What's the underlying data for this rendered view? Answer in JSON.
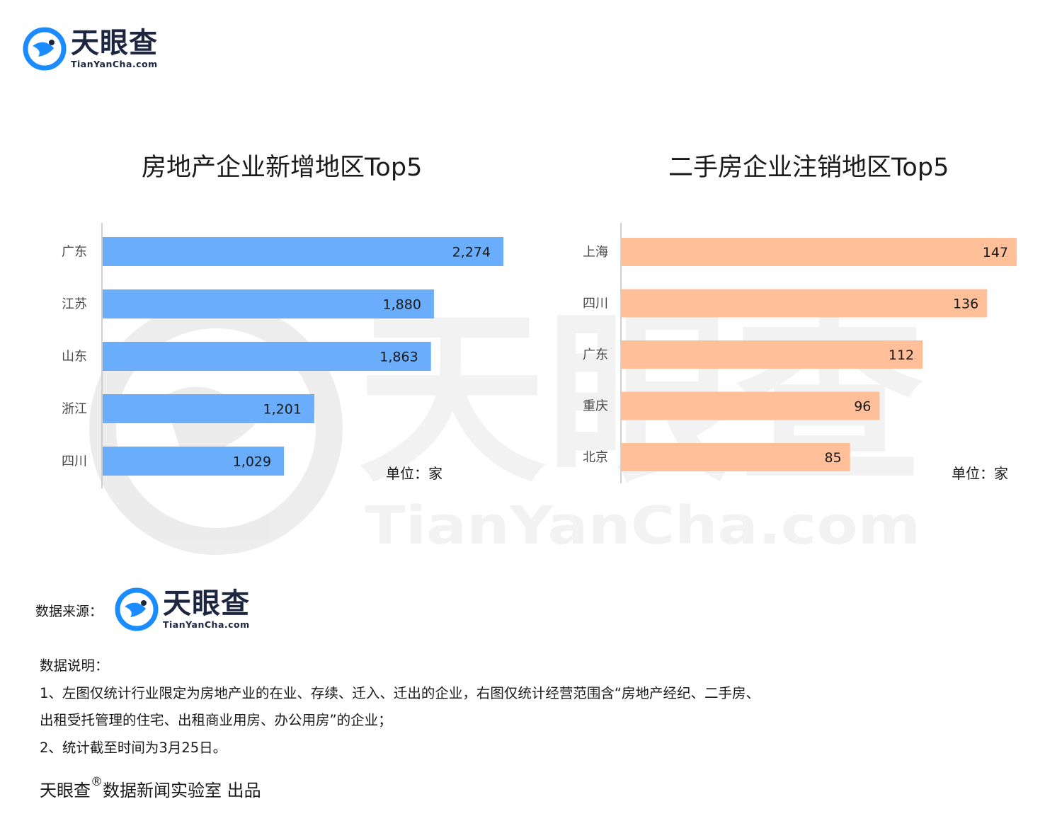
{
  "brand": {
    "name_cn": "天眼查",
    "name_en": "TianYanCha.com",
    "colors": {
      "navy": "#1d2640",
      "logo_blue": "#1a8cff"
    }
  },
  "watermark": {
    "text_cn": "天眼查",
    "text_en": "TianYanCha.com"
  },
  "chart_data": [
    {
      "type": "bar",
      "orientation": "horizontal",
      "title": "房地产企业新增地区Top5",
      "categories": [
        "广东",
        "江苏",
        "山东",
        "浙江",
        "四川"
      ],
      "values": [
        2274,
        1880,
        1863,
        1201,
        1029
      ],
      "value_labels": [
        "2,274",
        "1,880",
        "1,863",
        "1,201",
        "1,029"
      ],
      "unit_label": "单位：家",
      "color": "#6aaefb",
      "xlim": [
        0,
        2274
      ]
    },
    {
      "type": "bar",
      "orientation": "horizontal",
      "title": "二手房企业注销地区Top5",
      "categories": [
        "上海",
        "四川",
        "广东",
        "重庆",
        "北京"
      ],
      "values": [
        147,
        136,
        112,
        96,
        85
      ],
      "value_labels": [
        "147",
        "136",
        "112",
        "96",
        "85"
      ],
      "unit_label": "单位：家",
      "color": "#ffbf99",
      "xlim": [
        0,
        147
      ]
    }
  ],
  "footer": {
    "source_label": "数据来源：",
    "notes": [
      "数据说明：",
      "1、左图仅统计行业限定为房地产业的在业、存续、迁入、迁出的企业，右图仅统计经营范围含“房地产经纪、二手房、",
      "出租受托管理的住宅、出租商业用房、办公用房”的企业；",
      "2、统计截至时间为3月25日。"
    ],
    "credit_brand": "天眼查",
    "credit_mark": "®",
    "credit_rest": "数据新闻实验室 出品"
  }
}
